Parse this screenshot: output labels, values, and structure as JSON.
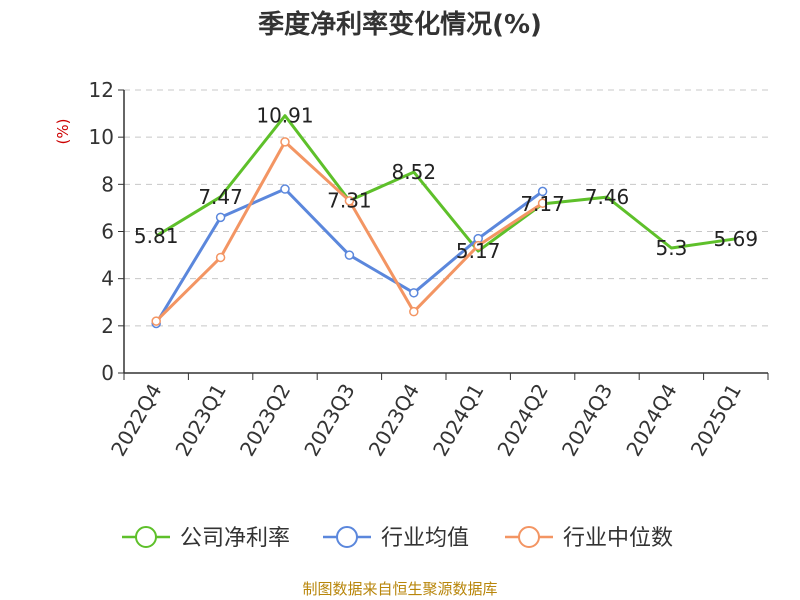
{
  "chart_data": {
    "type": "line",
    "title": "季度净利率变化情况(%)",
    "ylabel": "(%)",
    "ylim": [
      0,
      12
    ],
    "yticks": [
      0,
      2,
      4,
      6,
      8,
      10,
      12
    ],
    "grid": true,
    "legend_position": "bottom",
    "categories": [
      "2022Q4",
      "2023Q1",
      "2023Q2",
      "2023Q3",
      "2023Q4",
      "2024Q1",
      "2024Q2",
      "2024Q3",
      "2024Q4",
      "2025Q1"
    ],
    "series": [
      {
        "name": "公司净利率",
        "color": "#5ec02a",
        "values": [
          5.81,
          7.47,
          10.91,
          7.31,
          8.52,
          5.17,
          7.17,
          7.46,
          5.3,
          5.69
        ],
        "labels": [
          "5.81",
          "7.47",
          "10.91",
          "7.31",
          "8.52",
          "5.17",
          "7.17",
          "7.46",
          "5.3",
          "5.69"
        ]
      },
      {
        "name": "行业均值",
        "color": "#5b87dc",
        "values": [
          2.1,
          6.6,
          7.8,
          5.0,
          3.4,
          5.7,
          7.7,
          null,
          null,
          null
        ]
      },
      {
        "name": "行业中位数",
        "color": "#f39563",
        "values": [
          2.2,
          4.9,
          9.8,
          7.3,
          2.6,
          5.4,
          7.2,
          null,
          null,
          null
        ]
      }
    ]
  },
  "footer": {
    "source": "制图数据来自恒生聚源数据库"
  }
}
